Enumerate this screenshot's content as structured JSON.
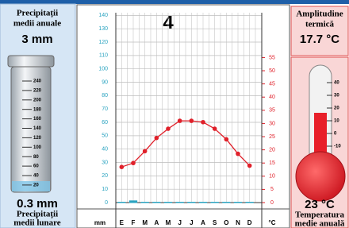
{
  "chart_data": {
    "type": "climogram",
    "title": "4",
    "categories": [
      "E",
      "F",
      "M",
      "A",
      "M",
      "J",
      "J",
      "A",
      "S",
      "O",
      "N",
      "D"
    ],
    "series": [
      {
        "color": "#2aa3c0",
        "values": [
          0,
          1,
          0,
          0,
          0,
          0,
          0,
          0,
          0,
          0,
          0,
          0
        ]
      },
      {
        "color": "#e0202a",
        "axis": "y2",
        "values": [
          13.5,
          15,
          19.5,
          24.5,
          28,
          31,
          31,
          30.5,
          28,
          24,
          18.5,
          14
        ]
      }
    ],
    "ylabel": "mm",
    "y2label": "°C",
    "ylim": [
      0,
      142
    ],
    "yticks": [
      0,
      10,
      20,
      30,
      40,
      50,
      60,
      70,
      80,
      90,
      100,
      110,
      120,
      130,
      140
    ],
    "y2lim": [
      0,
      72
    ],
    "y2ticks": [
      0,
      5,
      10,
      15,
      20,
      25,
      30,
      35,
      40,
      45,
      50,
      55
    ],
    "grid": true
  },
  "left_panel": {
    "annual_label": [
      "Precipitații",
      "medii anuale"
    ],
    "annual_value": "3 mm",
    "gauge_ticks": [
      "240",
      "220",
      "200",
      "180",
      "160",
      "140",
      "120",
      "100",
      "80",
      "60",
      "40",
      "20"
    ],
    "monthly_value": "0.3 mm",
    "monthly_label": [
      "Precipitații",
      "medii lunare"
    ]
  },
  "right_panel": {
    "amplitude_label": [
      "Amplitudine",
      "termică"
    ],
    "amplitude_value": "17.7 °C",
    "thermo_ticks": [
      "40",
      "30",
      "20",
      "10",
      "0",
      "-10"
    ],
    "mean_value": "23 °C",
    "mean_label": [
      "Temperatura",
      "medie anuală"
    ]
  }
}
